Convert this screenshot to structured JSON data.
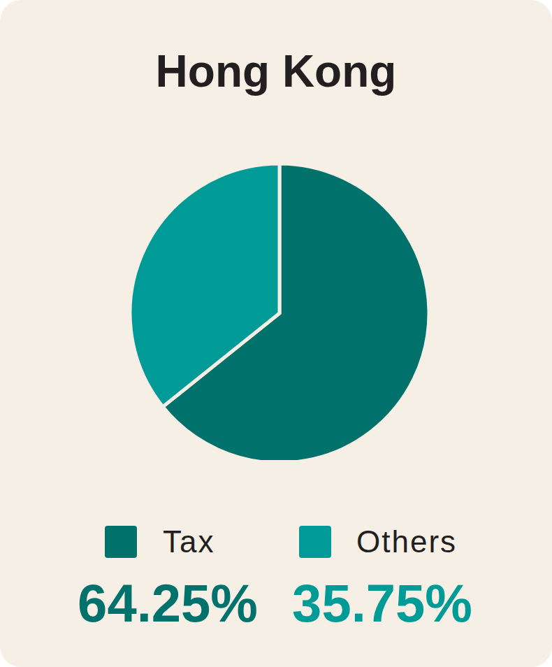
{
  "chart_data": {
    "type": "pie",
    "title": "Hong Kong",
    "categories": [
      "Tax",
      "Others"
    ],
    "values": [
      64.25,
      35.75
    ],
    "value_labels": [
      "64.25%",
      "35.75%"
    ],
    "colors": [
      "#00726b",
      "#009b97"
    ],
    "legend": "bottom"
  }
}
